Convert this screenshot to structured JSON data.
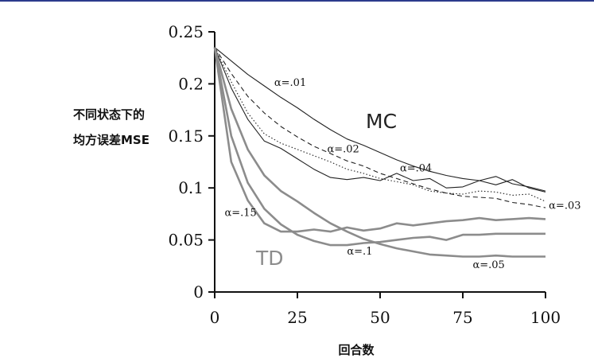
{
  "chart_data": {
    "type": "line",
    "xlabel": "回合数",
    "ylabel_lines": [
      "不同状态下的",
      "均方误差MSE"
    ],
    "xlim": [
      0,
      100
    ],
    "ylim": [
      0,
      0.25
    ],
    "xticks": [
      "0",
      "25",
      "50",
      "75",
      "100"
    ],
    "yticks": [
      "0",
      "0.05",
      "0.1",
      "0.15",
      "0.2",
      "0.25"
    ],
    "group_labels": {
      "mc": "MC",
      "td": "TD"
    },
    "colors": {
      "mc": "#222222",
      "td": "#8c8c8c"
    },
    "series": [
      {
        "name": "α=.01",
        "group": "mc",
        "dash": "solid",
        "x": [
          0,
          5,
          10,
          15,
          20,
          25,
          30,
          35,
          40,
          45,
          50,
          55,
          60,
          65,
          70,
          75,
          80,
          85,
          90,
          95,
          100
        ],
        "y": [
          0.235,
          0.222,
          0.209,
          0.198,
          0.187,
          0.177,
          0.166,
          0.156,
          0.147,
          0.141,
          0.134,
          0.127,
          0.121,
          0.116,
          0.112,
          0.109,
          0.107,
          0.111,
          0.104,
          0.101,
          0.097
        ]
      },
      {
        "name": "α=.02",
        "group": "mc",
        "dash": "dashed",
        "x": [
          0,
          5,
          10,
          15,
          20,
          25,
          30,
          35,
          40,
          45,
          50,
          55,
          60,
          65,
          70,
          75,
          80,
          85,
          90,
          95,
          100
        ],
        "y": [
          0.235,
          0.21,
          0.188,
          0.172,
          0.159,
          0.149,
          0.14,
          0.133,
          0.126,
          0.121,
          0.114,
          0.109,
          0.104,
          0.099,
          0.095,
          0.092,
          0.091,
          0.09,
          0.086,
          0.084,
          0.081
        ]
      },
      {
        "name": "α=.03",
        "group": "mc",
        "dash": "dotted",
        "x": [
          0,
          5,
          10,
          15,
          20,
          25,
          30,
          35,
          40,
          45,
          50,
          55,
          60,
          65,
          70,
          75,
          80,
          85,
          90,
          95,
          100
        ],
        "y": [
          0.235,
          0.202,
          0.172,
          0.152,
          0.143,
          0.137,
          0.131,
          0.125,
          0.118,
          0.114,
          0.109,
          0.106,
          0.103,
          0.097,
          0.095,
          0.094,
          0.097,
          0.096,
          0.093,
          0.094,
          0.087
        ]
      },
      {
        "name": "α=.04",
        "group": "mc",
        "dash": "solid",
        "x": [
          0,
          5,
          10,
          15,
          20,
          25,
          30,
          35,
          40,
          45,
          50,
          55,
          60,
          65,
          70,
          75,
          80,
          85,
          90,
          95,
          100
        ],
        "y": [
          0.235,
          0.196,
          0.166,
          0.145,
          0.138,
          0.128,
          0.118,
          0.11,
          0.108,
          0.11,
          0.107,
          0.114,
          0.107,
          0.109,
          0.1,
          0.101,
          0.107,
          0.103,
          0.108,
          0.1,
          0.096
        ]
      },
      {
        "name": "α=.05",
        "group": "td",
        "dash": "solid",
        "x": [
          0,
          5,
          10,
          15,
          20,
          25,
          30,
          35,
          40,
          45,
          50,
          55,
          60,
          65,
          70,
          75,
          80,
          85,
          90,
          95,
          100
        ],
        "y": [
          0.235,
          0.176,
          0.137,
          0.112,
          0.097,
          0.087,
          0.076,
          0.066,
          0.058,
          0.051,
          0.046,
          0.042,
          0.039,
          0.036,
          0.035,
          0.034,
          0.034,
          0.035,
          0.034,
          0.034,
          0.034
        ]
      },
      {
        "name": "α=.1",
        "group": "td",
        "dash": "solid",
        "x": [
          0,
          5,
          10,
          15,
          20,
          25,
          30,
          35,
          40,
          45,
          50,
          55,
          60,
          65,
          70,
          75,
          80,
          85,
          90,
          95,
          100
        ],
        "y": [
          0.235,
          0.15,
          0.105,
          0.08,
          0.065,
          0.055,
          0.049,
          0.045,
          0.045,
          0.047,
          0.048,
          0.05,
          0.052,
          0.053,
          0.05,
          0.055,
          0.055,
          0.056,
          0.056,
          0.056,
          0.056
        ]
      },
      {
        "name": "α=.15",
        "group": "td",
        "dash": "solid",
        "x": [
          0,
          5,
          10,
          15,
          20,
          25,
          30,
          35,
          40,
          45,
          50,
          55,
          60,
          65,
          70,
          75,
          80,
          85,
          90,
          95,
          100
        ],
        "y": [
          0.235,
          0.125,
          0.088,
          0.066,
          0.058,
          0.058,
          0.06,
          0.058,
          0.062,
          0.059,
          0.061,
          0.066,
          0.064,
          0.066,
          0.068,
          0.069,
          0.071,
          0.069,
          0.07,
          0.071,
          0.07
        ]
      }
    ]
  }
}
